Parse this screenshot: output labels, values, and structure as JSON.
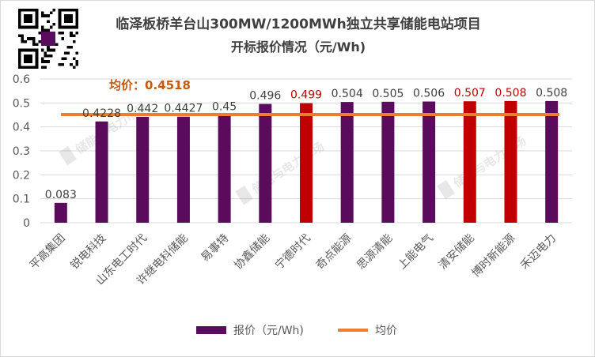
{
  "title_line1": "临泽板桥羊台山300MW/1200MWh独立共享储能电站项目",
  "title_line2": "开标报价情况（元/Wh)",
  "avg_label_prefix": "均价：",
  "avg_label_value": "0.4518",
  "watermark": "储能与电力市场",
  "colors": {
    "bar_default": "#5b0b5b",
    "bar_highlight": "#c00000",
    "avg_line": "#ed7d31",
    "label_default": "#404040",
    "label_highlight": "#c00000",
    "avg_text": "#c55a11",
    "grid": "#d9d9d9",
    "axis_text": "#595959"
  },
  "chart_data": {
    "type": "bar",
    "categories": [
      "平高集团",
      "锐电科技",
      "山东电工时代",
      "许继电科储能",
      "易事特",
      "协鑫储能",
      "宁德时代",
      "奇点能源",
      "思源清能",
      "上能电气",
      "清安储能",
      "博时新能源",
      "禾迈电力"
    ],
    "series": [
      {
        "name": "报价（元/Wh)",
        "type": "bar",
        "values": [
          0.083,
          0.4228,
          0.442,
          0.4427,
          0.45,
          0.496,
          0.499,
          0.504,
          0.505,
          0.506,
          0.507,
          0.508,
          0.508
        ],
        "labels": [
          "0.083",
          "0.4228",
          "0.442",
          "0.4427",
          "0.45",
          "0.496",
          "0.499",
          "0.504",
          "0.505",
          "0.506",
          "0.507",
          "0.508",
          "0.508"
        ],
        "highlight": [
          false,
          false,
          false,
          false,
          false,
          false,
          true,
          false,
          false,
          false,
          true,
          true,
          false
        ]
      },
      {
        "name": "均价",
        "type": "line",
        "value": 0.4518
      }
    ],
    "y_ticks": [
      "0",
      "0.1",
      "0.2",
      "0.3",
      "0.4",
      "0.5",
      "0.6"
    ],
    "ylim": [
      0,
      0.6
    ],
    "grid": true,
    "legend_position": "bottom"
  }
}
